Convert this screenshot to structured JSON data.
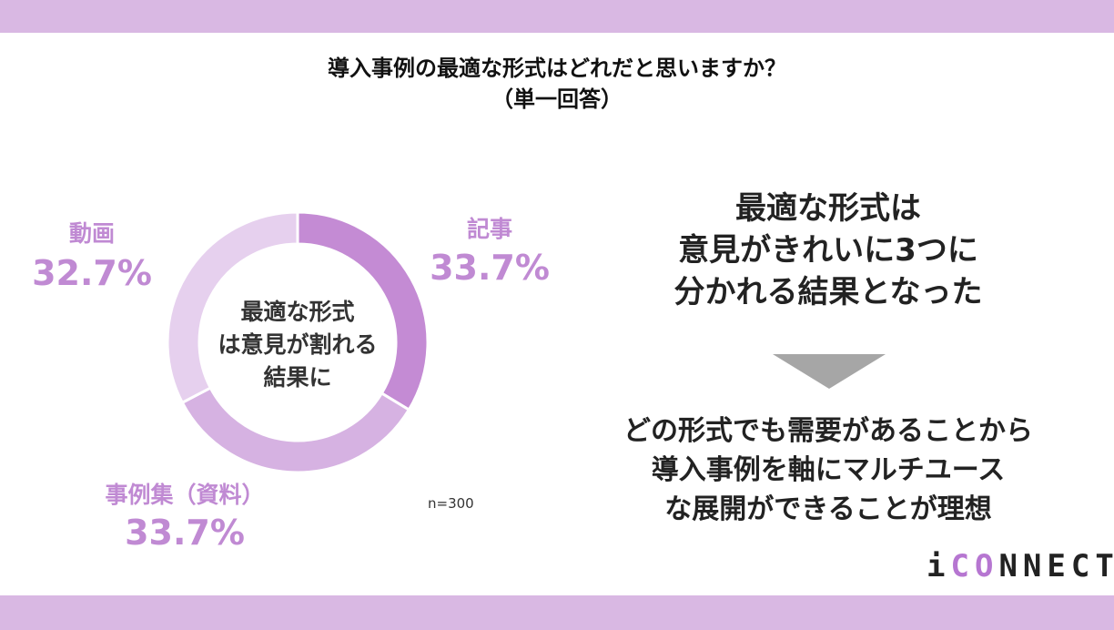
{
  "title": {
    "line1": "導入事例の最適な形式はどれだと思いますか？",
    "line2": "（単一回答）"
  },
  "chart_data": {
    "type": "pie",
    "donut": true,
    "categories": [
      "記事",
      "事例集（資料）",
      "動画"
    ],
    "values": [
      33.7,
      33.7,
      32.7
    ],
    "value_labels": [
      "33.7%",
      "33.7%",
      "32.7%"
    ],
    "center_text": [
      "最適な形式",
      "は意見が割れる",
      "結果に"
    ],
    "note": "n=300",
    "colors": [
      "#c48bd4",
      "#d6b2e2",
      "#e6d0ee"
    ]
  },
  "message": {
    "summary": [
      "最適な形式は",
      "意見がきれいに3つに",
      "分かれる結果となった"
    ],
    "conclusion": [
      "どの形式でも需要があることから",
      "導入事例を軸にマルチユース",
      "な展開ができることが理想"
    ]
  },
  "logo": {
    "pre": "i",
    "accent": "CO",
    "post": "NNECT"
  },
  "colors": {
    "band": "#d9b8e3",
    "label": "#c08ad3",
    "arrow": "#a6a6a6"
  }
}
